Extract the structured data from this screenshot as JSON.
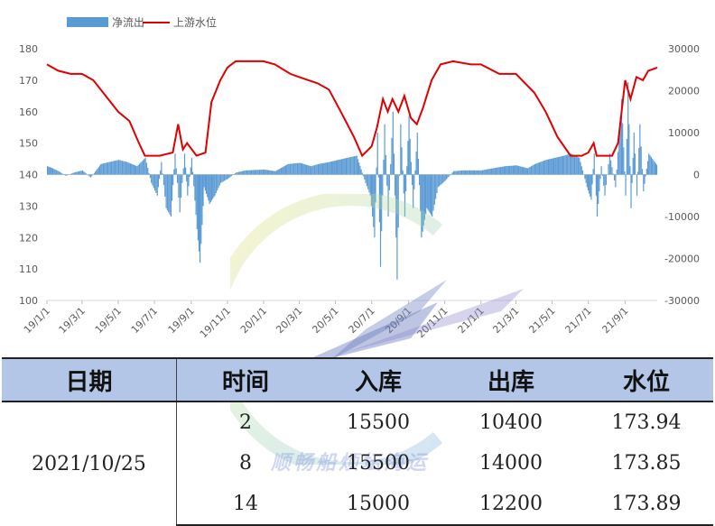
{
  "chart_data": {
    "type": "bar+line",
    "legend": {
      "placement": "top-left",
      "items": [
        "净流出",
        "上游水位"
      ]
    },
    "series": [
      {
        "name": "净流出",
        "type": "bar",
        "color": "#5b9bd5",
        "axis": "right"
      },
      {
        "name": "上游水位",
        "type": "line",
        "color": "#e00000",
        "axis": "left"
      }
    ],
    "left_axis": {
      "min": 100,
      "max": 180,
      "ticks": [
        100,
        110,
        120,
        130,
        140,
        150,
        160,
        170,
        180
      ]
    },
    "right_axis": {
      "min": -30000,
      "max": 30000,
      "ticks": [
        -30000,
        -20000,
        -10000,
        0,
        10000,
        20000,
        30000
      ]
    },
    "x_ticks": [
      "19/1/1",
      "19/3/1",
      "19/5/1",
      "19/7/1",
      "19/9/1",
      "19/11/1",
      "20/1/1",
      "20/3/1",
      "20/5/1",
      "20/7/1",
      "20/9/1",
      "20/11/1",
      "21/1/1",
      "21/3/1",
      "21/5/1",
      "21/7/1",
      "21/9/1"
    ],
    "level_series": [
      [
        "2019-01-01",
        175
      ],
      [
        "2019-01-20",
        173
      ],
      [
        "2019-02-10",
        172
      ],
      [
        "2019-03-01",
        172
      ],
      [
        "2019-03-20",
        170
      ],
      [
        "2019-04-10",
        165
      ],
      [
        "2019-05-01",
        160
      ],
      [
        "2019-05-20",
        157
      ],
      [
        "2019-06-05",
        150
      ],
      [
        "2019-06-15",
        146
      ],
      [
        "2019-07-10",
        146
      ],
      [
        "2019-08-01",
        147
      ],
      [
        "2019-08-10",
        156
      ],
      [
        "2019-08-18",
        148
      ],
      [
        "2019-08-25",
        150
      ],
      [
        "2019-09-10",
        146
      ],
      [
        "2019-09-25",
        147
      ],
      [
        "2019-10-05",
        163
      ],
      [
        "2019-10-20",
        170
      ],
      [
        "2019-11-01",
        174
      ],
      [
        "2019-11-15",
        176
      ],
      [
        "2020-01-01",
        176
      ],
      [
        "2020-01-20",
        175
      ],
      [
        "2020-02-15",
        172
      ],
      [
        "2020-03-01",
        171
      ],
      [
        "2020-04-01",
        169
      ],
      [
        "2020-04-20",
        167
      ],
      [
        "2020-05-10",
        160
      ],
      [
        "2020-06-01",
        152
      ],
      [
        "2020-06-15",
        146
      ],
      [
        "2020-07-01",
        149
      ],
      [
        "2020-07-10",
        155
      ],
      [
        "2020-07-20",
        164
      ],
      [
        "2020-07-28",
        160
      ],
      [
        "2020-08-05",
        164
      ],
      [
        "2020-08-15",
        160
      ],
      [
        "2020-08-25",
        165
      ],
      [
        "2020-09-05",
        158
      ],
      [
        "2020-09-15",
        156
      ],
      [
        "2020-09-25",
        161
      ],
      [
        "2020-10-10",
        170
      ],
      [
        "2020-10-25",
        175
      ],
      [
        "2020-11-15",
        176
      ],
      [
        "2020-12-15",
        175
      ],
      [
        "2021-01-01",
        175
      ],
      [
        "2021-02-01",
        172
      ],
      [
        "2021-03-01",
        172
      ],
      [
        "2021-04-01",
        166
      ],
      [
        "2021-04-20",
        160
      ],
      [
        "2021-05-10",
        152
      ],
      [
        "2021-06-01",
        146
      ],
      [
        "2021-06-20",
        146
      ],
      [
        "2021-07-01",
        147
      ],
      [
        "2021-07-10",
        150
      ],
      [
        "2021-07-15",
        146
      ],
      [
        "2021-08-10",
        146
      ],
      [
        "2021-08-20",
        150
      ],
      [
        "2021-09-01",
        170
      ],
      [
        "2021-09-10",
        164
      ],
      [
        "2021-09-20",
        171
      ],
      [
        "2021-10-01",
        170
      ],
      [
        "2021-10-10",
        173
      ],
      [
        "2021-10-25",
        174
      ]
    ],
    "outflow_series": [
      [
        "2019-01-01",
        2000
      ],
      [
        "2019-01-10",
        1500
      ],
      [
        "2019-01-20",
        800
      ],
      [
        "2019-02-01",
        -300
      ],
      [
        "2019-02-15",
        500
      ],
      [
        "2019-03-01",
        1000
      ],
      [
        "2019-03-15",
        -700
      ],
      [
        "2019-04-01",
        2500
      ],
      [
        "2019-04-15",
        3000
      ],
      [
        "2019-05-01",
        3500
      ],
      [
        "2019-05-15",
        3000
      ],
      [
        "2019-06-01",
        2000
      ],
      [
        "2019-06-15",
        4000
      ],
      [
        "2019-06-25",
        -2000
      ],
      [
        "2019-07-05",
        -5000
      ],
      [
        "2019-07-12",
        3000
      ],
      [
        "2019-07-20",
        -8000
      ],
      [
        "2019-07-28",
        -10000
      ],
      [
        "2019-08-04",
        5000
      ],
      [
        "2019-08-12",
        -9000
      ],
      [
        "2019-08-20",
        5000
      ],
      [
        "2019-08-25",
        -5000
      ],
      [
        "2019-09-01",
        4000
      ],
      [
        "2019-09-10",
        -13000
      ],
      [
        "2019-09-15",
        -21000
      ],
      [
        "2019-09-22",
        -3000
      ],
      [
        "2019-10-01",
        -7000
      ],
      [
        "2019-10-10",
        -5000
      ],
      [
        "2019-10-20",
        -2000
      ],
      [
        "2019-11-01",
        -1000
      ],
      [
        "2019-11-15",
        500
      ],
      [
        "2019-12-01",
        1000
      ],
      [
        "2020-01-01",
        1200
      ],
      [
        "2020-01-20",
        800
      ],
      [
        "2020-02-10",
        2500
      ],
      [
        "2020-03-01",
        2800
      ],
      [
        "2020-03-20",
        2000
      ],
      [
        "2020-04-01",
        2500
      ],
      [
        "2020-04-20",
        3000
      ],
      [
        "2020-05-05",
        3500
      ],
      [
        "2020-05-20",
        4000
      ],
      [
        "2020-06-05",
        4500
      ],
      [
        "2020-06-20",
        -2000
      ],
      [
        "2020-06-28",
        -5000
      ],
      [
        "2020-07-05",
        -15000
      ],
      [
        "2020-07-10",
        10000
      ],
      [
        "2020-07-15",
        -22000
      ],
      [
        "2020-07-22",
        12000
      ],
      [
        "2020-07-28",
        -10000
      ],
      [
        "2020-08-05",
        15000
      ],
      [
        "2020-08-12",
        -25000
      ],
      [
        "2020-08-18",
        12000
      ],
      [
        "2020-08-25",
        -10000
      ],
      [
        "2020-09-01",
        14000
      ],
      [
        "2020-09-08",
        -8000
      ],
      [
        "2020-09-15",
        10000
      ],
      [
        "2020-09-22",
        -15000
      ],
      [
        "2020-10-01",
        -8000
      ],
      [
        "2020-10-10",
        -10000
      ],
      [
        "2020-10-20",
        -3000
      ],
      [
        "2020-11-01",
        -1500
      ],
      [
        "2020-11-15",
        800
      ],
      [
        "2020-12-01",
        1000
      ],
      [
        "2021-01-01",
        1000
      ],
      [
        "2021-01-20",
        1500
      ],
      [
        "2021-02-10",
        2000
      ],
      [
        "2021-03-01",
        2200
      ],
      [
        "2021-03-20",
        1500
      ],
      [
        "2021-04-01",
        2500
      ],
      [
        "2021-04-20",
        3500
      ],
      [
        "2021-05-05",
        4000
      ],
      [
        "2021-05-20",
        4500
      ],
      [
        "2021-06-01",
        5000
      ],
      [
        "2021-06-15",
        4000
      ],
      [
        "2021-06-28",
        -3000
      ],
      [
        "2021-07-05",
        -6000
      ],
      [
        "2021-07-10",
        5000
      ],
      [
        "2021-07-15",
        -10000
      ],
      [
        "2021-07-22",
        2000
      ],
      [
        "2021-07-28",
        -5000
      ],
      [
        "2021-08-05",
        5000
      ],
      [
        "2021-08-15",
        -3000
      ],
      [
        "2021-08-25",
        18000
      ],
      [
        "2021-09-01",
        -5000
      ],
      [
        "2021-09-05",
        22000
      ],
      [
        "2021-09-10",
        -8000
      ],
      [
        "2021-09-15",
        10000
      ],
      [
        "2021-09-20",
        -5000
      ],
      [
        "2021-09-25",
        12000
      ],
      [
        "2021-10-01",
        -4000
      ],
      [
        "2021-10-10",
        5000
      ],
      [
        "2021-10-20",
        3000
      ],
      [
        "2021-10-25",
        2000
      ]
    ]
  },
  "watermark": "顺畅船烦坛海运",
  "table": {
    "headers": {
      "date": "日期",
      "time": "时间",
      "inflow": "入库",
      "outflow": "出库",
      "level": "水位"
    },
    "date": "2021/10/25",
    "rows": [
      {
        "time": "2",
        "inflow": "15500",
        "outflow": "10400",
        "level": "173.94"
      },
      {
        "time": "8",
        "inflow": "15500",
        "outflow": "14000",
        "level": "173.85"
      },
      {
        "time": "14",
        "inflow": "15000",
        "outflow": "12200",
        "level": "173.89"
      }
    ]
  }
}
